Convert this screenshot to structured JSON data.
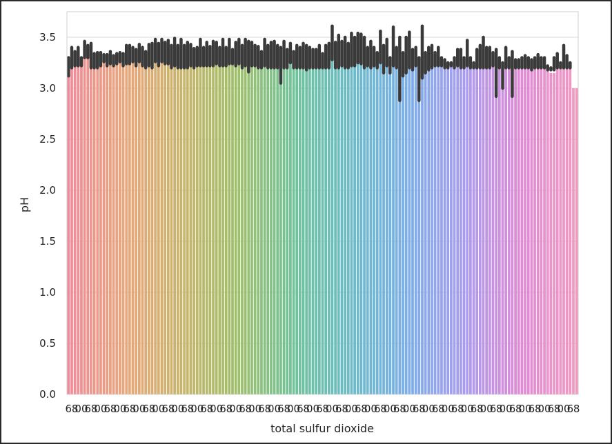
{
  "chart_data": {
    "type": "bar",
    "title": "",
    "xlabel": "total sulfur dioxide",
    "ylabel": "pH",
    "ylim": [
      0,
      3.75
    ],
    "yticks": [
      "0.0",
      "0.5",
      "1.0",
      "1.5",
      "2.0",
      "2.5",
      "3.0",
      "3.5"
    ],
    "grid": "horizontal",
    "legend": "none",
    "error_bars": true,
    "palette": [
      "#f08b9a",
      "#e9a67a",
      "#c8b46a",
      "#9fbf6a",
      "#6fc29a",
      "#6bbcc8",
      "#7aaee8",
      "#a99cf0",
      "#e08ad6",
      "#f29ac0"
    ],
    "error_bar_color": "#3a3a3a",
    "x_tick_labels_note": "overlapping unreadable labels; readable fragments: '6', '8', '00'",
    "x_tick_text": [
      "6",
      "8",
      "00"
    ],
    "values": [
      3.28,
      3.35,
      3.28,
      3.35,
      3.25,
      3.38,
      3.35,
      3.32,
      3.28,
      3.25,
      3.3,
      3.3,
      3.28,
      3.3,
      3.28,
      3.3,
      3.3,
      3.28,
      3.3,
      3.35,
      3.35,
      3.3,
      3.35,
      3.3,
      3.28,
      3.35,
      3.35,
      3.4,
      3.32,
      3.4,
      3.36,
      3.38,
      3.3,
      3.38,
      3.3,
      3.35,
      3.3,
      3.35,
      3.32,
      3.3,
      3.3,
      3.35,
      3.3,
      3.35,
      3.3,
      3.35,
      3.35,
      3.3,
      3.35,
      3.3,
      3.35,
      3.3,
      3.38,
      3.35,
      3.3,
      3.38,
      3.32,
      3.35,
      3.3,
      3.3,
      3.28,
      3.35,
      3.28,
      3.35,
      3.35,
      3.3,
      3.25,
      3.32,
      3.25,
      3.35,
      3.28,
      3.3,
      3.28,
      3.35,
      3.3,
      3.3,
      3.28,
      3.25,
      3.3,
      3.25,
      3.3,
      3.35,
      3.48,
      3.35,
      3.4,
      3.35,
      3.38,
      3.35,
      3.42,
      3.38,
      3.45,
      3.4,
      3.38,
      3.3,
      3.35,
      3.3,
      3.25,
      3.48,
      3.3,
      3.3,
      3.2,
      3.3,
      3.25,
      3.3,
      3.2,
      3.3,
      3.35,
      3.28,
      3.3,
      3.1,
      3.28,
      3.25,
      3.2,
      3.3,
      3.25,
      3.35,
      3.25,
      3.25,
      3.2,
      3.25,
      3.25,
      3.3,
      3.3,
      3.25,
      3.28,
      3.25,
      3.2,
      3.35,
      3.3,
      3.45,
      3.3,
      3.35,
      3.28,
      3.3,
      3.22,
      3.2,
      3.35,
      3.25,
      3.3,
      3.2,
      3.2,
      3.25,
      3.2,
      3.25,
      3.2,
      3.25,
      3.3,
      3.28,
      3.25,
      3.18,
      3.15,
      3.15,
      3.3,
      3.2,
      3.4,
      3.32,
      3.25,
      3.0,
      3.0
    ],
    "err_lo": [
      3.12,
      3.2,
      3.22,
      3.22,
      3.22,
      3.3,
      3.3,
      3.2,
      3.2,
      3.2,
      3.22,
      3.26,
      3.22,
      3.24,
      3.22,
      3.24,
      3.26,
      3.22,
      3.24,
      3.24,
      3.26,
      3.22,
      3.26,
      3.22,
      3.2,
      3.22,
      3.2,
      3.26,
      3.22,
      3.26,
      3.24,
      3.24,
      3.2,
      3.22,
      3.2,
      3.2,
      3.2,
      3.2,
      3.22,
      3.2,
      3.22,
      3.22,
      3.22,
      3.22,
      3.22,
      3.22,
      3.24,
      3.22,
      3.22,
      3.22,
      3.24,
      3.24,
      3.22,
      3.24,
      3.2,
      3.22,
      3.16,
      3.22,
      3.22,
      3.2,
      3.2,
      3.22,
      3.2,
      3.2,
      3.2,
      3.2,
      3.05,
      3.2,
      3.2,
      3.25,
      3.2,
      3.2,
      3.2,
      3.2,
      3.18,
      3.2,
      3.2,
      3.2,
      3.2,
      3.2,
      3.2,
      3.2,
      3.28,
      3.2,
      3.2,
      3.22,
      3.2,
      3.2,
      3.22,
      3.22,
      3.25,
      3.24,
      3.2,
      3.22,
      3.2,
      3.22,
      3.2,
      3.25,
      3.15,
      3.22,
      3.15,
      3.22,
      3.2,
      2.88,
      3.12,
      3.15,
      3.2,
      3.18,
      3.22,
      2.88,
      3.1,
      3.15,
      3.18,
      3.2,
      3.22,
      3.22,
      3.22,
      3.2,
      3.2,
      3.22,
      3.2,
      3.22,
      3.2,
      3.2,
      3.22,
      3.2,
      3.2,
      3.2,
      3.2,
      3.2,
      3.2,
      3.2,
      3.22,
      2.92,
      3.2,
      3.0,
      3.2,
      3.2,
      2.92,
      3.2,
      3.2,
      3.2,
      3.2,
      3.2,
      3.18,
      3.2,
      3.2,
      3.2,
      3.2,
      3.18,
      3.18,
      3.18,
      3.2,
      3.2,
      3.2,
      3.2,
      3.2,
      3.2,
      3.2,
      3.2
    ],
    "err_hi": [
      3.3,
      3.4,
      3.36,
      3.4,
      3.3,
      3.46,
      3.42,
      3.44,
      3.34,
      3.35,
      3.35,
      3.33,
      3.33,
      3.36,
      3.32,
      3.34,
      3.35,
      3.34,
      3.42,
      3.42,
      3.4,
      3.38,
      3.43,
      3.4,
      3.36,
      3.43,
      3.44,
      3.48,
      3.44,
      3.48,
      3.45,
      3.47,
      3.42,
      3.49,
      3.42,
      3.48,
      3.42,
      3.45,
      3.43,
      3.39,
      3.4,
      3.48,
      3.4,
      3.45,
      3.41,
      3.46,
      3.45,
      3.4,
      3.48,
      3.4,
      3.48,
      3.38,
      3.45,
      3.48,
      3.42,
      3.48,
      3.46,
      3.45,
      3.42,
      3.41,
      3.36,
      3.48,
      3.42,
      3.45,
      3.46,
      3.42,
      3.4,
      3.46,
      3.38,
      3.44,
      3.36,
      3.42,
      3.4,
      3.44,
      3.42,
      3.4,
      3.38,
      3.38,
      3.42,
      3.34,
      3.42,
      3.44,
      3.61,
      3.45,
      3.52,
      3.46,
      3.5,
      3.44,
      3.54,
      3.5,
      3.54,
      3.53,
      3.5,
      3.4,
      3.46,
      3.4,
      3.35,
      3.56,
      3.42,
      3.48,
      3.3,
      3.6,
      3.4,
      3.5,
      3.35,
      3.5,
      3.55,
      3.38,
      3.4,
      3.3,
      3.61,
      3.35,
      3.4,
      3.42,
      3.35,
      3.4,
      3.3,
      3.28,
      3.25,
      3.25,
      3.3,
      3.38,
      3.38,
      3.3,
      3.47,
      3.3,
      3.25,
      3.38,
      3.42,
      3.5,
      3.4,
      3.4,
      3.35,
      3.38,
      3.3,
      3.25,
      3.4,
      3.3,
      3.36,
      3.28,
      3.28,
      3.3,
      3.32,
      3.3,
      3.28,
      3.3,
      3.33,
      3.3,
      3.3,
      3.22,
      3.2,
      3.3,
      3.34,
      3.25,
      3.42,
      3.32,
      3.25,
      3.0,
      3.0
    ]
  }
}
